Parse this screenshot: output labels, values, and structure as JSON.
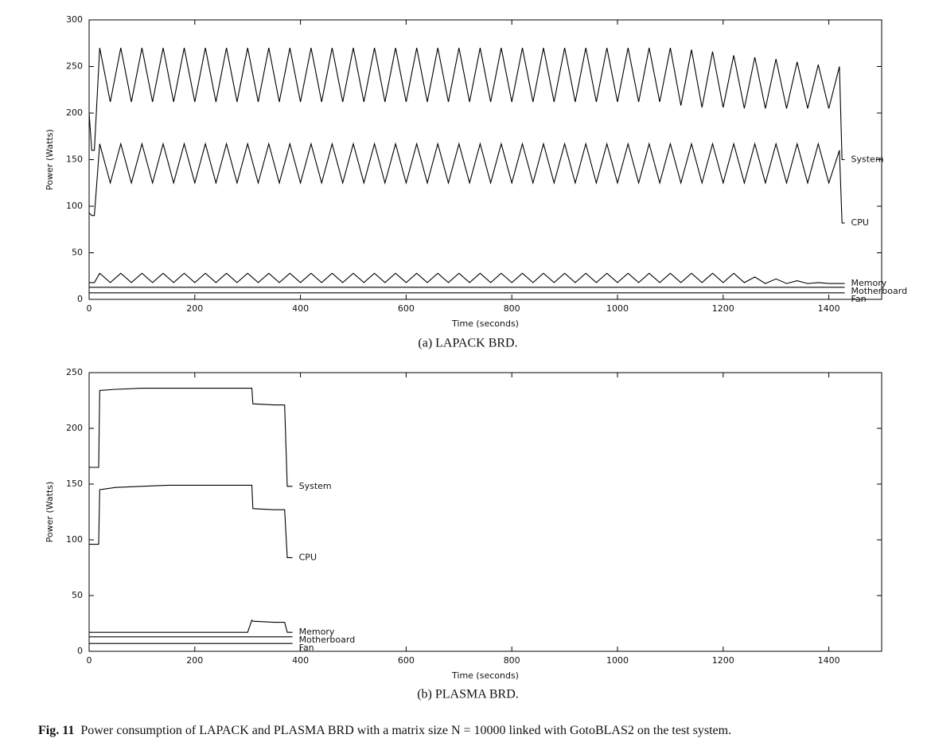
{
  "chart_data": [
    {
      "type": "line",
      "caption": "(a) LAPACK BRD.",
      "xlabel": "Time (seconds)",
      "ylabel": "Power (Watts)",
      "xlim": [
        0,
        1500
      ],
      "xticks": [
        0,
        200,
        400,
        600,
        800,
        1000,
        1200,
        1400
      ],
      "ylim": [
        0,
        300
      ],
      "yticks": [
        0,
        50,
        100,
        150,
        200,
        250,
        300
      ],
      "x": [
        0,
        5,
        10,
        20,
        40,
        60,
        80,
        100,
        120,
        140,
        160,
        180,
        200,
        220,
        240,
        260,
        280,
        300,
        320,
        340,
        360,
        380,
        400,
        420,
        440,
        460,
        480,
        500,
        520,
        540,
        560,
        580,
        600,
        620,
        640,
        660,
        680,
        700,
        720,
        740,
        760,
        780,
        800,
        820,
        840,
        860,
        880,
        900,
        920,
        940,
        960,
        980,
        1000,
        1020,
        1040,
        1060,
        1080,
        1100,
        1120,
        1140,
        1160,
        1180,
        1200,
        1220,
        1240,
        1260,
        1280,
        1300,
        1320,
        1340,
        1360,
        1380,
        1400,
        1420,
        1425,
        1430
      ],
      "series": [
        {
          "name": "System",
          "color": "#000000",
          "values": [
            200,
            160,
            160,
            270,
            212,
            270,
            212,
            270,
            212,
            270,
            212,
            270,
            212,
            270,
            212,
            270,
            212,
            270,
            212,
            270,
            212,
            270,
            212,
            270,
            212,
            270,
            212,
            270,
            212,
            270,
            212,
            270,
            212,
            270,
            212,
            270,
            212,
            270,
            212,
            270,
            212,
            270,
            212,
            270,
            212,
            270,
            212,
            270,
            212,
            270,
            212,
            270,
            212,
            270,
            212,
            270,
            212,
            270,
            208,
            268,
            206,
            266,
            206,
            262,
            205,
            260,
            205,
            258,
            205,
            255,
            205,
            252,
            205,
            250,
            150,
            150
          ]
        },
        {
          "name": "CPU",
          "color": "#000000",
          "values": [
            93,
            90,
            90,
            167,
            125,
            167,
            125,
            167,
            125,
            167,
            125,
            167,
            125,
            167,
            125,
            167,
            125,
            167,
            125,
            167,
            125,
            167,
            125,
            167,
            125,
            167,
            125,
            167,
            125,
            167,
            125,
            167,
            125,
            167,
            125,
            167,
            125,
            167,
            125,
            167,
            125,
            167,
            125,
            167,
            125,
            167,
            125,
            167,
            125,
            167,
            125,
            167,
            125,
            167,
            125,
            167,
            125,
            167,
            125,
            167,
            125,
            167,
            125,
            167,
            125,
            167,
            125,
            167,
            125,
            167,
            125,
            167,
            125,
            160,
            82,
            82
          ]
        },
        {
          "name": "Memory",
          "color": "#000000",
          "values": [
            18,
            18,
            18,
            28,
            18,
            28,
            18,
            28,
            18,
            28,
            18,
            28,
            18,
            28,
            18,
            28,
            18,
            28,
            18,
            28,
            18,
            28,
            18,
            28,
            18,
            28,
            18,
            28,
            18,
            28,
            18,
            28,
            18,
            28,
            18,
            28,
            18,
            28,
            18,
            28,
            18,
            28,
            18,
            28,
            18,
            28,
            18,
            28,
            18,
            28,
            18,
            28,
            18,
            28,
            18,
            28,
            18,
            28,
            18,
            28,
            18,
            28,
            18,
            28,
            18,
            24,
            17,
            22,
            17,
            20,
            17,
            18,
            17,
            17,
            17,
            17
          ]
        },
        {
          "name": "Motherboard",
          "color": "#000000",
          "values": [
            13,
            13,
            13,
            13,
            13,
            13,
            13,
            13,
            13,
            13,
            13,
            13,
            13,
            13,
            13,
            13,
            13,
            13,
            13,
            13,
            13,
            13,
            13,
            13,
            13,
            13,
            13,
            13,
            13,
            13,
            13,
            13,
            13,
            13,
            13,
            13,
            13,
            13,
            13,
            13,
            13,
            13,
            13,
            13,
            13,
            13,
            13,
            13,
            13,
            13,
            13,
            13,
            13,
            13,
            13,
            13,
            13,
            13,
            13,
            13,
            13,
            13,
            13,
            13,
            13,
            13,
            13,
            13,
            13,
            13,
            13,
            13,
            13,
            13,
            13,
            13
          ]
        },
        {
          "name": "Fan",
          "color": "#000000",
          "values": [
            7,
            7,
            7,
            7,
            7,
            7,
            7,
            7,
            7,
            7,
            7,
            7,
            7,
            7,
            7,
            7,
            7,
            7,
            7,
            7,
            7,
            7,
            7,
            7,
            7,
            7,
            7,
            7,
            7,
            7,
            7,
            7,
            7,
            7,
            7,
            7,
            7,
            7,
            7,
            7,
            7,
            7,
            7,
            7,
            7,
            7,
            7,
            7,
            7,
            7,
            7,
            7,
            7,
            7,
            7,
            7,
            7,
            7,
            7,
            7,
            7,
            7,
            7,
            7,
            7,
            7,
            7,
            7,
            7,
            7,
            7,
            7,
            7,
            7,
            7,
            7
          ]
        }
      ]
    },
    {
      "type": "line",
      "caption": "(b) PLASMA BRD.",
      "xlabel": "Time (seconds)",
      "ylabel": "Power (Watts)",
      "xlim": [
        0,
        1500
      ],
      "xticks": [
        0,
        200,
        400,
        600,
        800,
        1000,
        1200,
        1400
      ],
      "ylim": [
        0,
        250
      ],
      "yticks": [
        0,
        50,
        100,
        150,
        200,
        250
      ],
      "x": [
        0,
        18,
        20,
        50,
        100,
        150,
        200,
        250,
        300,
        308,
        310,
        350,
        370,
        375,
        380,
        385
      ],
      "series": [
        {
          "name": "System",
          "color": "#000000",
          "values": [
            165,
            165,
            234,
            235,
            236,
            236,
            236,
            236,
            236,
            236,
            222,
            221,
            221,
            148,
            148,
            148
          ]
        },
        {
          "name": "CPU",
          "color": "#000000",
          "values": [
            96,
            96,
            145,
            147,
            148,
            149,
            149,
            149,
            149,
            149,
            128,
            127,
            127,
            84,
            84,
            84
          ]
        },
        {
          "name": "Memory",
          "color": "#000000",
          "values": [
            17,
            17,
            17,
            17,
            17,
            17,
            17,
            17,
            17,
            28,
            27,
            26,
            26,
            17,
            17,
            17
          ]
        },
        {
          "name": "Motherboard",
          "color": "#000000",
          "values": [
            13,
            13,
            13,
            13,
            13,
            13,
            13,
            13,
            13,
            13,
            13,
            13,
            13,
            13,
            13,
            13
          ]
        },
        {
          "name": "Fan",
          "color": "#000000",
          "values": [
            7,
            7,
            7,
            7,
            7,
            7,
            7,
            7,
            7,
            7,
            7,
            7,
            7,
            7,
            7,
            7
          ]
        }
      ]
    }
  ],
  "figure_label": "Fig. 11",
  "figure_caption": "Power consumption of LAPACK and PLASMA BRD with a matrix size N = 10000 linked with GotoBLAS2 on the test system."
}
